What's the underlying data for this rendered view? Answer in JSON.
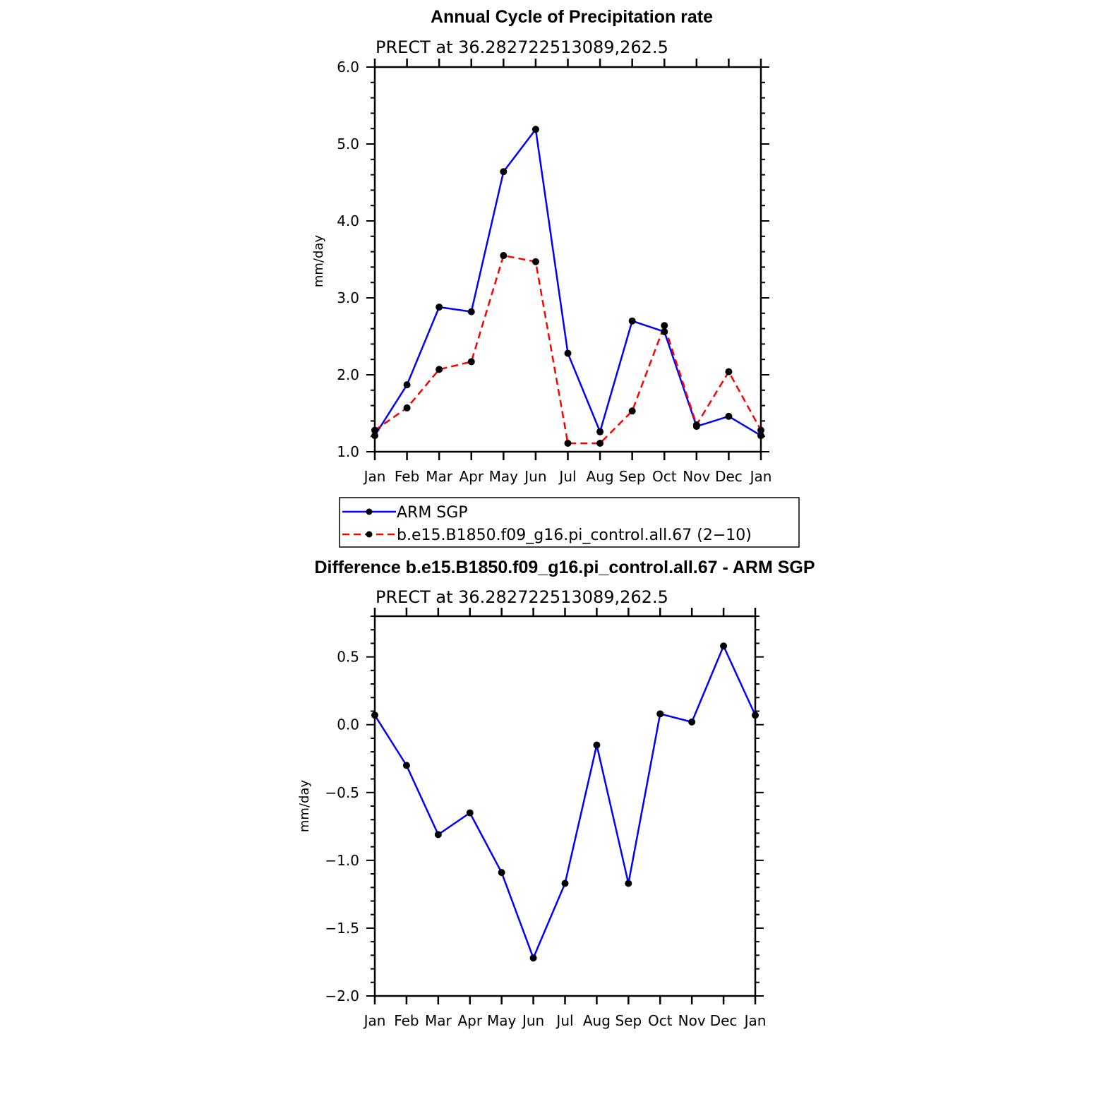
{
  "chart_data": [
    {
      "type": "line",
      "title": "Annual Cycle of Precipitation rate",
      "subtitle": "PRECT at 36.282722513089,262.5",
      "xlabel": "",
      "ylabel": "mm/day",
      "categories": [
        "Jan",
        "Feb",
        "Mar",
        "Apr",
        "May",
        "Jun",
        "Jul",
        "Aug",
        "Sep",
        "Oct",
        "Nov",
        "Dec",
        "Jan"
      ],
      "ylim": [
        1.0,
        6.0
      ],
      "yticks": [
        "1.0",
        "2.0",
        "3.0",
        "4.0",
        "5.0",
        "6.0"
      ],
      "legend_position": "bottom",
      "series": [
        {
          "name": "ARM SGP",
          "color": "#0000ff",
          "dash": "solid",
          "values": [
            1.21,
            1.87,
            2.88,
            2.82,
            4.64,
            5.19,
            2.28,
            1.26,
            2.7,
            2.56,
            1.33,
            1.46,
            1.21
          ]
        },
        {
          "name": "b.e15.B1850.f09_g16.pi_control.all.67 (2−10)",
          "color": "#ff0000",
          "dash": "dashed",
          "values": [
            1.28,
            1.57,
            2.07,
            2.17,
            3.55,
            3.47,
            1.11,
            1.11,
            1.53,
            2.64,
            1.35,
            2.04,
            1.28
          ]
        }
      ]
    },
    {
      "type": "line",
      "title": "Difference b.e15.B1850.f09_g16.pi_control.all.67 - ARM SGP",
      "subtitle": "PRECT at 36.282722513089,262.5",
      "xlabel": "",
      "ylabel": "mm/day",
      "categories": [
        "Jan",
        "Feb",
        "Mar",
        "Apr",
        "May",
        "Jun",
        "Jul",
        "Aug",
        "Sep",
        "Oct",
        "Nov",
        "Dec",
        "Jan"
      ],
      "ylim": [
        -2.0,
        0.8
      ],
      "yticks": [
        "−2.0",
        "−1.5",
        "−1.0",
        "−0.5",
        "0.0",
        "0.5"
      ],
      "ytick_values": [
        -2.0,
        -1.5,
        -1.0,
        -0.5,
        0.0,
        0.5
      ],
      "series": [
        {
          "color": "#0000ff",
          "dash": "solid",
          "values": [
            0.07,
            -0.3,
            -0.81,
            -0.65,
            -1.09,
            -1.72,
            -1.17,
            -0.15,
            -1.17,
            0.08,
            0.02,
            0.58,
            0.07
          ]
        }
      ]
    }
  ]
}
